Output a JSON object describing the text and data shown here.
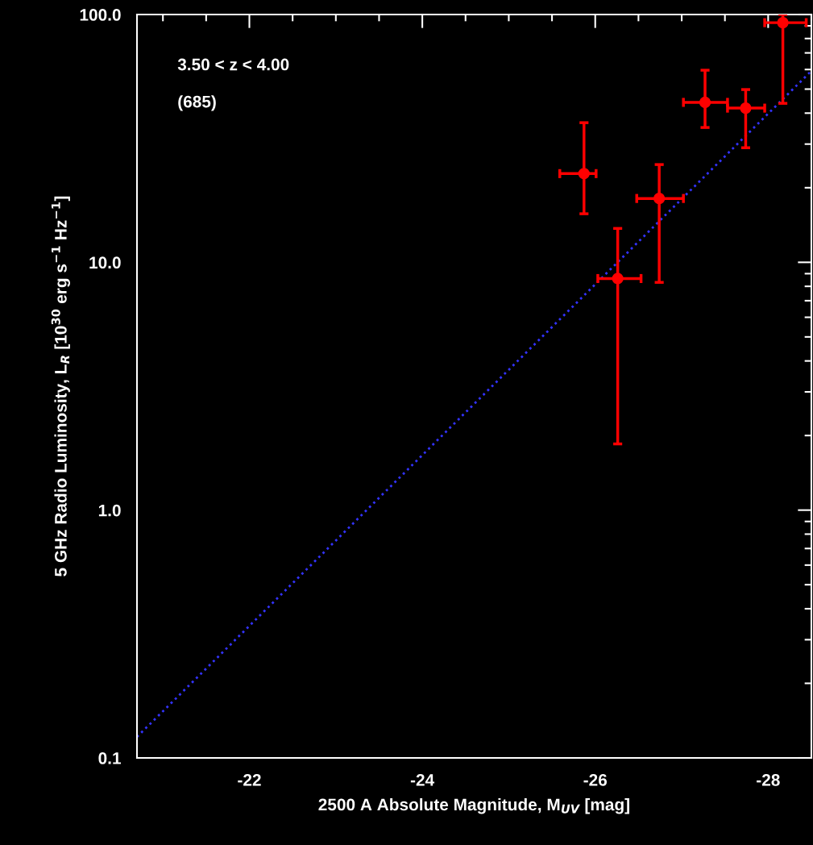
{
  "chart_data": {
    "type": "scatter",
    "xlabel": "2500 A Absolute Magnitude, M$_{UV}$ [mag]",
    "ylabel": "5 GHz Radio Luminosity, L$_{R}$ [10$^{30}$ erg s$^{−1}$ Hz$^{−1}$]",
    "annotations": [
      "3.50 < z < 4.00",
      "(685)"
    ],
    "series": [
      {
        "color": "#ff0000",
        "marker": "circle",
        "x": [
          -25.87,
          -26.26,
          -26.74,
          -27.27,
          -27.74,
          -28.17
        ],
        "values": [
          22.8,
          8.6,
          18.1,
          44.2,
          41.9,
          92.7
        ],
        "errors": [
          [
            15.7,
            36.6
          ],
          [
            1.85,
            13.7
          ],
          [
            8.3,
            24.8
          ],
          [
            35.0,
            59.6
          ],
          [
            29.0,
            49.8
          ],
          [
            43.8,
            100
          ]
        ],
        "xerrors": [
          [
            -26.01,
            -25.59
          ],
          [
            -26.53,
            -26.03
          ],
          [
            -27.02,
            -26.48
          ],
          [
            -27.53,
            -27.02
          ],
          [
            -27.96,
            -27.53
          ],
          [
            -28.44,
            -27.96
          ]
        ]
      },
      {
        "type": "line",
        "color": "#3333ff",
        "line_style": "dotted",
        "x": [
          -20.7,
          -28.5
        ],
        "values": [
          0.1216,
          59.2
        ]
      }
    ],
    "xlim": [
      -20.7,
      -28.5
    ],
    "xticks": [
      -22,
      -24,
      -26,
      -28
    ],
    "ylim": [
      0.1,
      100
    ],
    "yticks": [
      {
        "value": 0.1,
        "label": "0.1"
      },
      {
        "value": 1,
        "label": "1.0"
      },
      {
        "value": 10,
        "label": "10.0"
      },
      {
        "value": 100,
        "label": "100.0"
      }
    ],
    "log": "y",
    "grid": false
  }
}
